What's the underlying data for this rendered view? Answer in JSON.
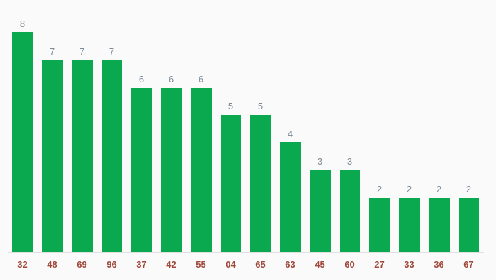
{
  "chart_data": {
    "type": "bar",
    "title": "",
    "xlabel": "",
    "ylabel": "",
    "categories": [
      "32",
      "48",
      "69",
      "96",
      "37",
      "42",
      "55",
      "04",
      "65",
      "63",
      "45",
      "60",
      "27",
      "33",
      "36",
      "67"
    ],
    "values": [
      8,
      7,
      7,
      7,
      6,
      6,
      6,
      5,
      5,
      4,
      3,
      3,
      2,
      2,
      2,
      2
    ],
    "ylim": [
      0,
      8.9
    ],
    "grid": false,
    "legend": "none",
    "value_labels_shown": true,
    "bar_color": "#0ba94f",
    "value_label_color": "#7b8a97",
    "category_label_color": "#a0493b",
    "background_color": "#fafafa",
    "axis_line_color": "#e0e0e0"
  }
}
